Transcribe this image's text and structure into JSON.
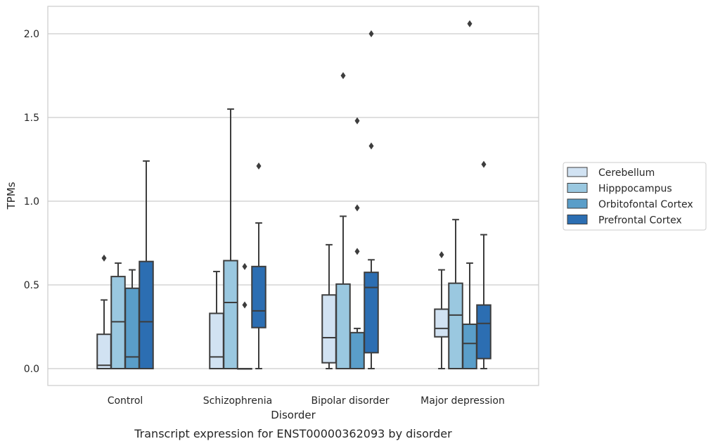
{
  "caption": "Transcript expression for ENST00000362093 by disorder",
  "chart_data": {
    "type": "box",
    "xlabel": "Disorder",
    "ylabel": "TPMs",
    "ylim": [
      -0.1,
      2.17
    ],
    "yticks": [
      "0.0",
      "0.5",
      "1.0",
      "1.5",
      "2.0"
    ],
    "ytick_values": [
      0,
      0.5,
      1.0,
      1.5,
      2.0
    ],
    "grid": "horizontal",
    "legend_position": "right",
    "categories": [
      "Control",
      "Schizophrenia",
      "Bipolar disorder",
      "Major depression"
    ],
    "series": [
      {
        "name": "Cerebellum",
        "color": "#d1e2f2",
        "boxes": [
          {
            "whislo": 0.0,
            "q1": 0.0,
            "med": 0.02,
            "q3": 0.205,
            "whishi": 0.41,
            "fliers": [
              0.66
            ]
          },
          {
            "whislo": 0.0,
            "q1": 0.0,
            "med": 0.07,
            "q3": 0.33,
            "whishi": 0.58,
            "fliers": []
          },
          {
            "whislo": 0.0,
            "q1": 0.035,
            "med": 0.185,
            "q3": 0.44,
            "whishi": 0.74,
            "fliers": []
          },
          {
            "whislo": 0.0,
            "q1": 0.19,
            "med": 0.24,
            "q3": 0.355,
            "whishi": 0.59,
            "fliers": [
              0.68
            ]
          }
        ]
      },
      {
        "name": "Hipppocampus",
        "color": "#9ac8e0",
        "boxes": [
          {
            "whislo": 0.0,
            "q1": 0.0,
            "med": 0.28,
            "q3": 0.55,
            "whishi": 0.63,
            "fliers": []
          },
          {
            "whislo": 0.0,
            "q1": 0.0,
            "med": 0.395,
            "q3": 0.645,
            "whishi": 1.55,
            "fliers": []
          },
          {
            "whislo": 0.0,
            "q1": 0.0,
            "med": 0.0,
            "q3": 0.505,
            "whishi": 0.91,
            "fliers": [
              1.75
            ]
          },
          {
            "whislo": 0.0,
            "q1": 0.0,
            "med": 0.32,
            "q3": 0.51,
            "whishi": 0.89,
            "fliers": []
          }
        ]
      },
      {
        "name": "Orbitofontal Cortex",
        "color": "#5a9ec9",
        "boxes": [
          {
            "whislo": 0.0,
            "q1": 0.0,
            "med": 0.07,
            "q3": 0.48,
            "whishi": 0.59,
            "fliers": []
          },
          {
            "whislo": 0.0,
            "q1": 0.0,
            "med": 0.0,
            "q3": 0.0,
            "whishi": 0.0,
            "fliers": [
              0.38,
              0.61
            ]
          },
          {
            "whislo": 0.0,
            "q1": 0.0,
            "med": 0.0,
            "q3": 0.215,
            "whishi": 0.24,
            "fliers": [
              0.7,
              0.96,
              1.48
            ]
          },
          {
            "whislo": 0.0,
            "q1": 0.0,
            "med": 0.15,
            "q3": 0.265,
            "whishi": 0.63,
            "fliers": [
              2.06
            ]
          }
        ]
      },
      {
        "name": "Prefrontal Cortex",
        "color": "#2c6eb2",
        "boxes": [
          {
            "whislo": 0.0,
            "q1": 0.0,
            "med": 0.28,
            "q3": 0.64,
            "whishi": 1.24,
            "fliers": []
          },
          {
            "whislo": 0.0,
            "q1": 0.245,
            "med": 0.345,
            "q3": 0.61,
            "whishi": 0.87,
            "fliers": [
              1.21
            ]
          },
          {
            "whislo": 0.0,
            "q1": 0.095,
            "med": 0.485,
            "q3": 0.575,
            "whishi": 0.65,
            "fliers": [
              1.33,
              2.0
            ]
          },
          {
            "whislo": 0.0,
            "q1": 0.06,
            "med": 0.27,
            "q3": 0.38,
            "whishi": 0.8,
            "fliers": [
              1.22
            ]
          }
        ]
      }
    ]
  }
}
